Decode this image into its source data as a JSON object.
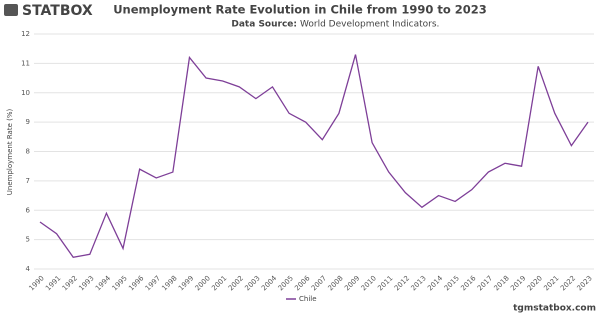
{
  "brand": "STATBOX",
  "footer": "tgmstatbox.com",
  "chart_data": {
    "type": "line",
    "title": "Unemployment Rate Evolution in Chile from 1990 to 2023",
    "source_label": "Data Source:",
    "source": "World Development Indicators.",
    "ylabel": "Unemployment Rate (%)",
    "categories": [
      "1990",
      "1991",
      "1992",
      "1993",
      "1994",
      "1995",
      "1996",
      "1997",
      "1998",
      "1999",
      "2000",
      "2001",
      "2002",
      "2003",
      "2004",
      "2005",
      "2006",
      "2007",
      "2008",
      "2009",
      "2010",
      "2011",
      "2012",
      "2013",
      "2014",
      "2015",
      "2016",
      "2017",
      "2018",
      "2019",
      "2020",
      "2021",
      "2022",
      "2023"
    ],
    "series": [
      {
        "name": "Chile",
        "color": "#7e3f98",
        "values": [
          5.6,
          5.2,
          4.4,
          4.5,
          5.9,
          4.7,
          7.4,
          7.1,
          7.3,
          11.2,
          10.5,
          10.4,
          10.2,
          9.8,
          10.2,
          9.3,
          9.0,
          8.4,
          9.3,
          11.3,
          8.3,
          7.3,
          6.6,
          6.1,
          6.5,
          6.3,
          6.7,
          7.3,
          7.6,
          7.5,
          10.9,
          9.3,
          8.2,
          9.0
        ]
      }
    ],
    "ylim": [
      4,
      12
    ],
    "yticks": [
      4,
      5,
      6,
      7,
      8,
      9,
      10,
      11,
      12
    ],
    "grid": true
  }
}
